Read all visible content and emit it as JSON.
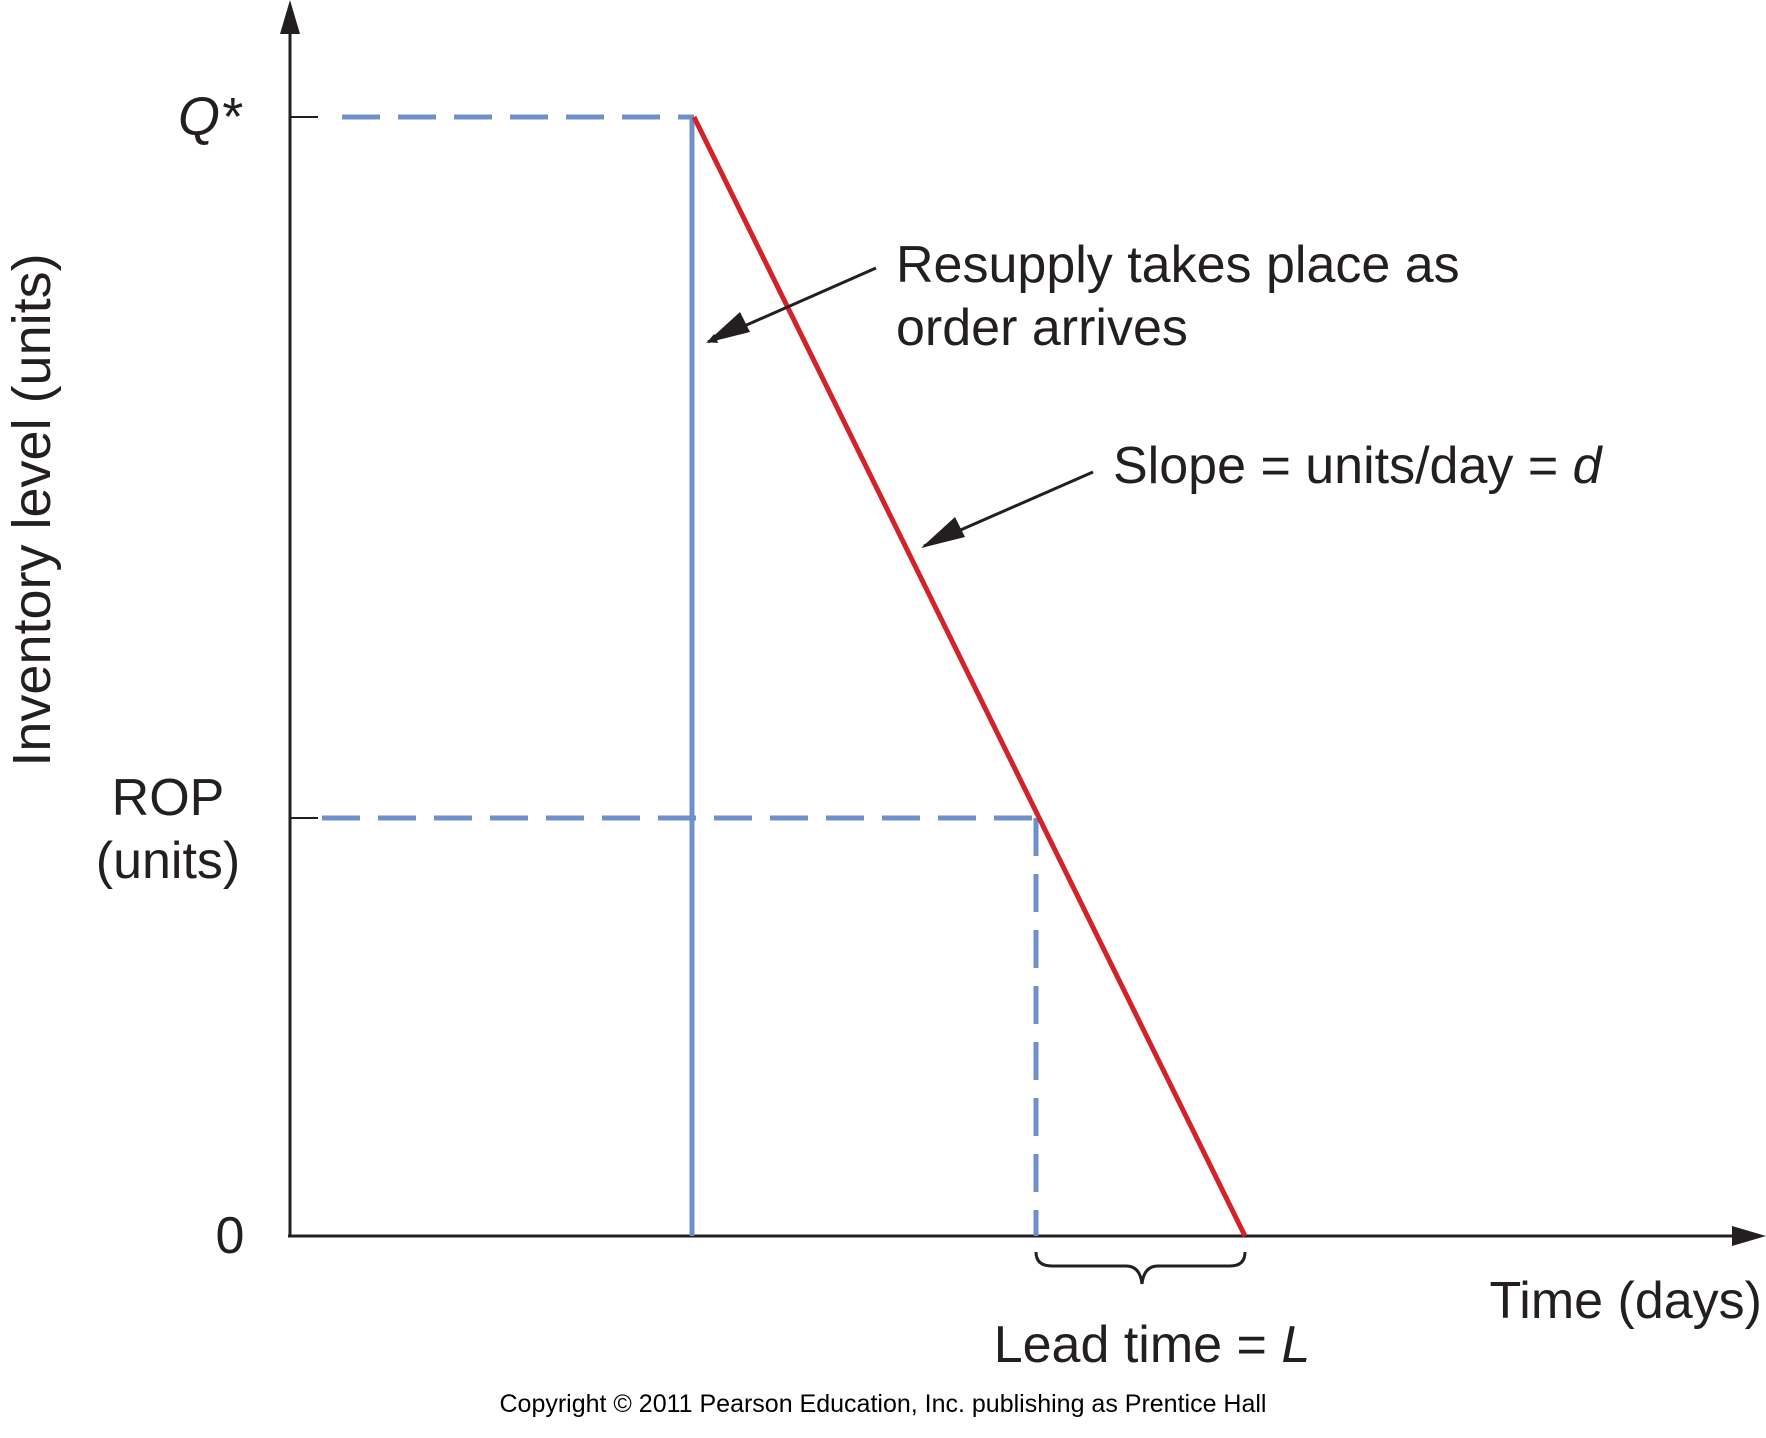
{
  "diagram": {
    "y_axis_label": "Inventory level (units)",
    "x_axis_label": "Time (days)",
    "tick_q": "Q*",
    "tick_rop_line1": "ROP",
    "tick_rop_line2": "(units)",
    "tick_zero": "0",
    "annotation_resupply_line1": "Resupply takes place as",
    "annotation_resupply_line2": "order arrives",
    "annotation_slope_text": "Slope = units/day = ",
    "annotation_slope_var": "d",
    "lead_time_text": "Lead time = ",
    "lead_time_var": "L"
  },
  "colors": {
    "axis": "#231f20",
    "inventory_line": "#d2232a",
    "reference_lines": "#6f8fc9",
    "text": "#231f20"
  },
  "footer": {
    "copyright": "Copyright © 2011 Pearson Education, Inc. publishing as Prentice Hall"
  }
}
